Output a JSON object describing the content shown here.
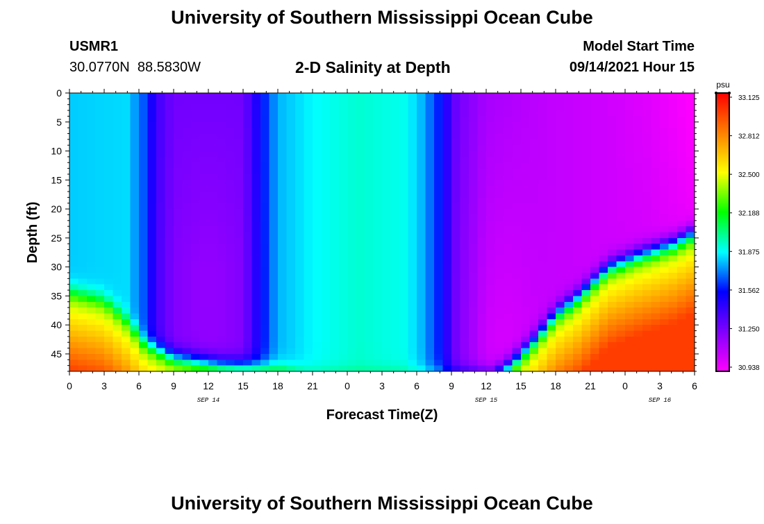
{
  "header": {
    "title": "University of Southern Mississippi Ocean Cube",
    "station_id": "USMR1",
    "station_coords": "30.0770N  88.5830W",
    "plot_title": "2-D Salinity at Depth",
    "model_start_label": "Model Start Time",
    "model_start_value": "09/14/2021 Hour 15",
    "footer_title": "University of Southern Mississippi Ocean Cube"
  },
  "colors": {
    "palette": [
      "#ff00ff",
      "#8000ff",
      "#0000ff",
      "#00ffff",
      "#00ff00",
      "#ffff00",
      "#ff8000",
      "#ff0000"
    ]
  },
  "chart_data": {
    "type": "heatmap",
    "title": "2-D Salinity at Depth",
    "xlabel": "Forecast Time(Z)",
    "ylabel": "Depth (ft)",
    "x_hours_range": [
      0,
      54
    ],
    "y_range": [
      0,
      48
    ],
    "y_inverted": true,
    "x_ticks": [
      {
        "hour": 0,
        "label": "0"
      },
      {
        "hour": 3,
        "label": "3"
      },
      {
        "hour": 6,
        "label": "6"
      },
      {
        "hour": 9,
        "label": "9"
      },
      {
        "hour": 12,
        "label": "12"
      },
      {
        "hour": 15,
        "label": "15"
      },
      {
        "hour": 18,
        "label": "18"
      },
      {
        "hour": 21,
        "label": "21"
      },
      {
        "hour": 24,
        "label": "0"
      },
      {
        "hour": 27,
        "label": "3"
      },
      {
        "hour": 30,
        "label": "6"
      },
      {
        "hour": 33,
        "label": "9"
      },
      {
        "hour": 36,
        "label": "12"
      },
      {
        "hour": 39,
        "label": "15"
      },
      {
        "hour": 42,
        "label": "18"
      },
      {
        "hour": 45,
        "label": "21"
      },
      {
        "hour": 48,
        "label": "0"
      },
      {
        "hour": 51,
        "label": "3"
      },
      {
        "hour": 54,
        "label": "6"
      }
    ],
    "date_labels": [
      {
        "hour": 12,
        "label": "SEP 14"
      },
      {
        "hour": 36,
        "label": "SEP 15"
      },
      {
        "hour": 51,
        "label": "SEP 16"
      }
    ],
    "y_ticks": [
      0,
      5,
      10,
      15,
      20,
      25,
      30,
      35,
      40,
      45
    ],
    "colorbar": {
      "unit": "psu",
      "min": 30.9,
      "max": 33.1,
      "labels": [
        "33.125",
        "32.812",
        "32.500",
        "32.188",
        "31.875",
        "31.562",
        "31.250",
        "30.938"
      ]
    },
    "field_model": {
      "description_units": "salinity in psu",
      "base_profile": [
        {
          "hour": 0,
          "value": 31.78
        },
        {
          "hour": 5,
          "value": 31.8
        },
        {
          "hour": 6.5,
          "value": 31.62
        },
        {
          "hour": 7.5,
          "value": 31.38
        },
        {
          "hour": 9,
          "value": 31.25
        },
        {
          "hour": 15,
          "value": 31.25
        },
        {
          "hour": 16.5,
          "value": 31.52
        },
        {
          "hour": 18,
          "value": 31.75
        },
        {
          "hour": 21,
          "value": 31.84
        },
        {
          "hour": 25,
          "value": 31.9
        },
        {
          "hour": 29,
          "value": 31.86
        },
        {
          "hour": 30.5,
          "value": 31.75
        },
        {
          "hour": 32,
          "value": 31.55
        },
        {
          "hour": 33.5,
          "value": 31.25
        },
        {
          "hour": 36,
          "value": 31.12
        },
        {
          "hour": 42,
          "value": 31.05
        },
        {
          "hour": 50,
          "value": 31.0
        },
        {
          "hour": 54,
          "value": 30.94
        }
      ],
      "warm_layer_top": [
        {
          "hour": 0,
          "depth": 34
        },
        {
          "hour": 3,
          "depth": 35.5
        },
        {
          "hour": 5,
          "depth": 39
        },
        {
          "hour": 6.5,
          "depth": 43
        },
        {
          "hour": 9,
          "depth": 45.5
        },
        {
          "hour": 13,
          "depth": 46.8
        },
        {
          "hour": 18,
          "depth": 47.5
        },
        {
          "hour": 21,
          "depth": 49
        },
        {
          "hour": 36.5,
          "depth": 49
        },
        {
          "hour": 38,
          "depth": 47
        },
        {
          "hour": 40,
          "depth": 43
        },
        {
          "hour": 42,
          "depth": 38
        },
        {
          "hour": 44,
          "depth": 35
        },
        {
          "hour": 46.5,
          "depth": 30
        },
        {
          "hour": 49,
          "depth": 28
        },
        {
          "hour": 52,
          "depth": 26
        },
        {
          "hour": 54,
          "depth": 24
        }
      ],
      "lower_value_near": 32.3,
      "lower_value_deep": 32.95,
      "transition_width_ft": 2.4
    }
  }
}
